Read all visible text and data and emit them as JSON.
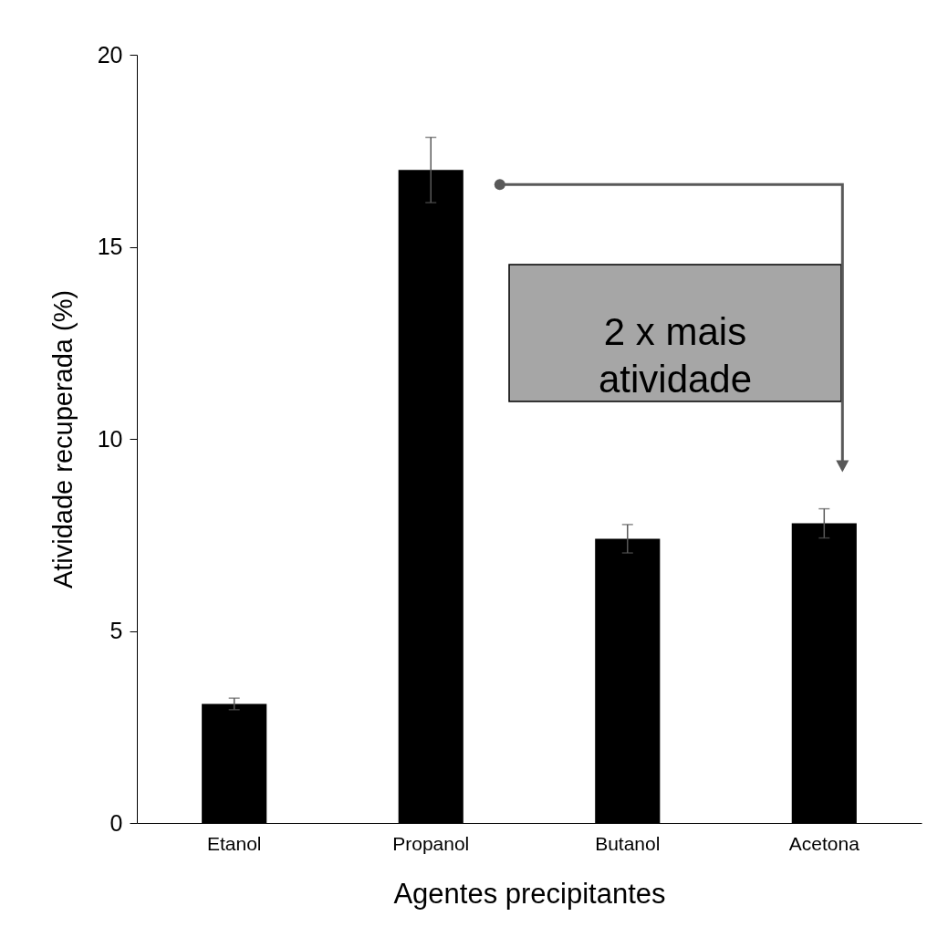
{
  "chart_data": {
    "type": "bar",
    "xlabel": "Agentes precipitantes",
    "ylabel": "Atividade recuperada (%)",
    "categories": [
      "Etanol",
      "Propanol",
      "Butanol",
      "Acetona"
    ],
    "values": [
      3.1,
      17.0,
      7.4,
      7.8
    ],
    "errors": [
      0.15,
      0.85,
      0.37,
      0.38
    ],
    "color": "#000000",
    "ylim": [
      0,
      20
    ],
    "yticks": [
      0,
      5,
      10,
      15,
      20
    ],
    "grid": false,
    "annotations": [
      "2 x mais atividade"
    ]
  }
}
